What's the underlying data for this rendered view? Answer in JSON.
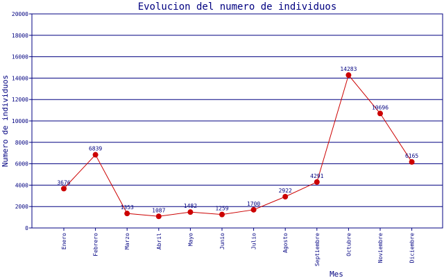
{
  "chart_data": {
    "type": "line",
    "title": "Evolucion del numero de individuos",
    "xlabel": "Mes",
    "ylabel": "Numero de individuos",
    "categories": [
      "Enero",
      "Febrero",
      "Marzo",
      "Abril",
      "Mayo",
      "Junio",
      "Julio",
      "Agosto",
      "Septiembre",
      "Octubre",
      "Noviembre",
      "Diciembre"
    ],
    "series": [
      {
        "values": [
          3676,
          6839,
          1353,
          1087,
          1482,
          1259,
          1700,
          2922,
          4291,
          14283,
          10696,
          6165
        ]
      }
    ],
    "ylim": [
      0,
      20000
    ],
    "yticks": [
      0,
      2000,
      4000,
      6000,
      8000,
      10000,
      12000,
      14000,
      16000,
      18000,
      20000
    ],
    "grid": true,
    "colors": {
      "line": "#cc0000",
      "marker": "#cc0000",
      "grid": "#000080",
      "text": "#000080",
      "background": "#ffffff"
    }
  }
}
